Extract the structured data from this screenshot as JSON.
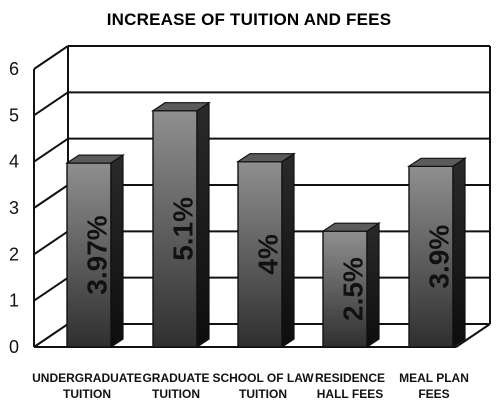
{
  "chart_data": {
    "type": "bar",
    "title": "INCREASE OF TUITION AND FEES",
    "categories": [
      [
        "UNDERGRADUATE",
        "TUITION"
      ],
      [
        "GRADUATE",
        "TUITION"
      ],
      [
        "SCHOOL OF LAW",
        "TUITION"
      ],
      [
        "RESIDENCE",
        "HALL FEES"
      ],
      [
        "MEAL PLAN",
        "FEES"
      ]
    ],
    "values": [
      3.97,
      5.1,
      4,
      2.5,
      3.9
    ],
    "value_labels": [
      "3.97%",
      "5.1%",
      "4%",
      "2.5%",
      "3.9%"
    ],
    "ylim": [
      0,
      6
    ],
    "yticks": [
      0,
      1,
      2,
      3,
      4,
      5,
      6
    ],
    "grid": true,
    "style": "3d-bar",
    "colors": {
      "bar_front_dark": "#2f2f2f",
      "bar_front_light": "#8f8f8f",
      "bar_side": "#111111",
      "bar_top": "#5b5b5b",
      "grid": "#111111",
      "text": "#111111"
    }
  }
}
